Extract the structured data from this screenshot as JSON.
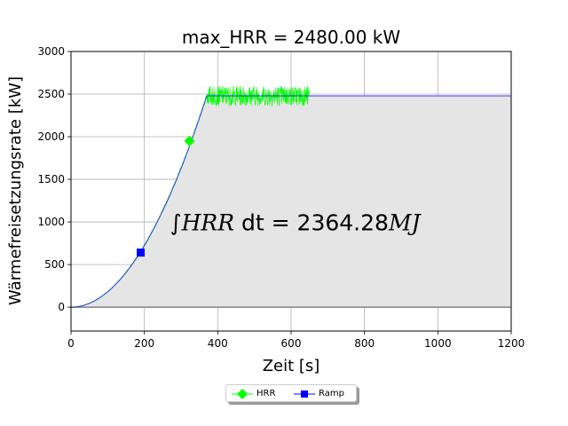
{
  "chart_data": {
    "type": "line",
    "title": "max_HRR = 2480.00 kW",
    "xlabel": "Zeit [s]",
    "ylabel": "Wärmefreisetzungsrate [kW]",
    "xlim": [
      0,
      1200
    ],
    "ylim": [
      -280,
      3000
    ],
    "xticks": [
      0,
      200,
      400,
      600,
      800,
      1000,
      1200
    ],
    "yticks": [
      0,
      500,
      1000,
      1500,
      2000,
      2500,
      3000
    ],
    "grid": true,
    "legend_position": "bottom-center",
    "annotation": {
      "prefix": "∫",
      "italic_name": "HRR",
      "dt": " dt",
      "equals": " = 2364.28",
      "unit": "MJ",
      "x": 270,
      "y": 900
    },
    "series": [
      {
        "name": "HRR",
        "color": "#00ff00",
        "marker": "diamond",
        "noisy": true,
        "marker_point": [
          323,
          1950
        ],
        "segments": [
          {
            "x_start": 0,
            "x_end": 370,
            "shape": "quadratic",
            "y_end": 2480
          },
          {
            "x_start": 370,
            "x_end": 650,
            "shape": "noise",
            "mean": 2480,
            "amplitude": 120
          }
        ]
      },
      {
        "name": "Ramp",
        "color": "#0000ff",
        "marker": "square",
        "marker_point": [
          190,
          640
        ],
        "segments": [
          {
            "x_start": 0,
            "x_end": 370,
            "shape": "quadratic",
            "y_end": 2480
          },
          {
            "x_start": 370,
            "x_end": 1200,
            "shape": "constant",
            "value": 2480
          }
        ]
      }
    ],
    "zero_line": {
      "value": 0,
      "color": "#808080"
    },
    "fill_color": "#e5e5e5"
  }
}
